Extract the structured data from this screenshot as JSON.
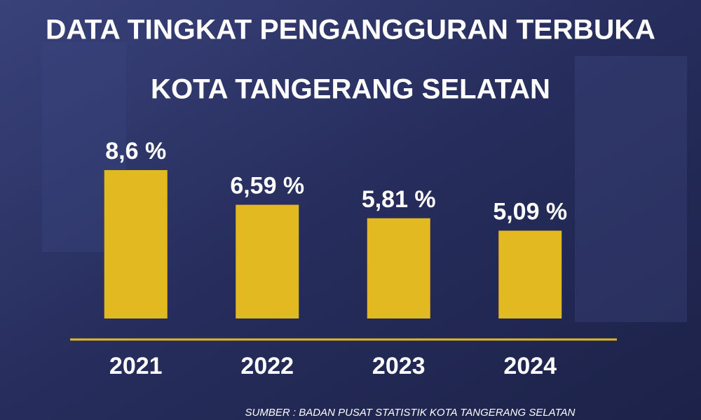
{
  "chart_data": {
    "type": "bar",
    "title": "DATA TINGKAT PENGANGGURAN TERBUKA",
    "subtitle": "KOTA TANGERANG SELATAN",
    "categories": [
      "2021",
      "2022",
      "2023",
      "2024"
    ],
    "values": [
      8.6,
      6.59,
      5.81,
      5.09
    ],
    "value_labels": [
      "8,6 %",
      "6,59 %",
      "5,81 %",
      "5,09 %"
    ],
    "color": "#e3b922",
    "source": "SUMBER : BADAN PUSAT STATISTIK KOTA TANGERANG SELATAN"
  }
}
